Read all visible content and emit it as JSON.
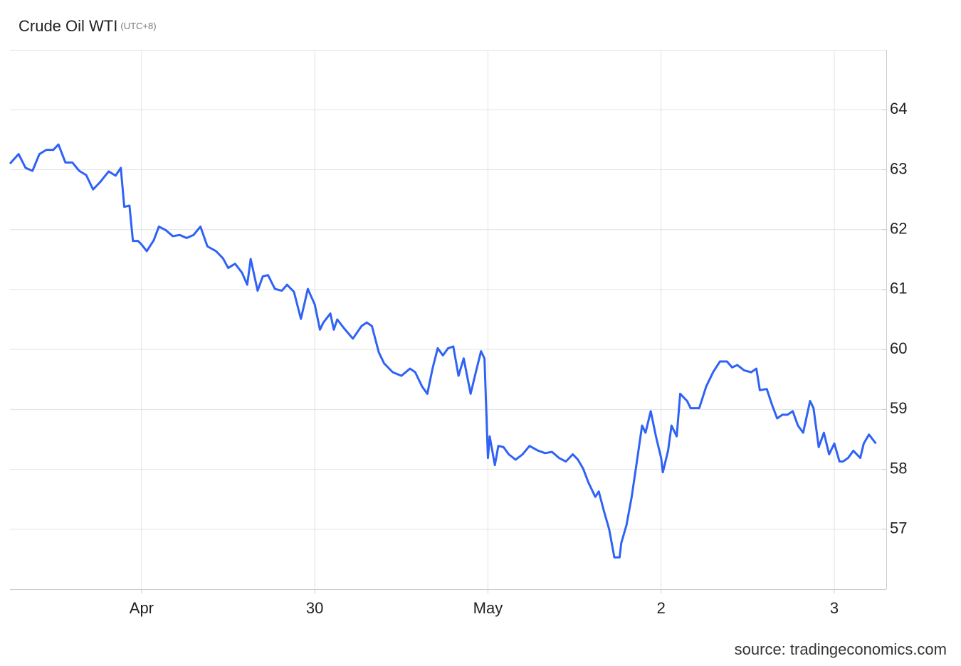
{
  "chart_data": {
    "type": "line",
    "title": "Crude Oil WTI",
    "subtitle": "(UTC+8)",
    "source": "source: tradingeconomics.com",
    "xlim": [
      0.24,
      5.3
    ],
    "ylim": [
      56,
      65
    ],
    "xticks": [
      {
        "value": 1,
        "label": "Apr"
      },
      {
        "value": 2,
        "label": "30"
      },
      {
        "value": 3,
        "label": "May"
      },
      {
        "value": 4,
        "label": "2"
      },
      {
        "value": 5,
        "label": "3"
      }
    ],
    "yticks": [
      57,
      58,
      59,
      60,
      61,
      62,
      63,
      64
    ],
    "grid": true,
    "series": [
      {
        "color": "#2f62f5",
        "x": [
          0.24,
          0.29,
          0.33,
          0.37,
          0.41,
          0.45,
          0.49,
          0.52,
          0.56,
          0.6,
          0.64,
          0.68,
          0.72,
          0.76,
          0.81,
          0.85,
          0.88,
          0.9,
          0.93,
          0.95,
          0.98,
          1.0,
          1.03,
          1.07,
          1.1,
          1.14,
          1.18,
          1.22,
          1.26,
          1.3,
          1.34,
          1.38,
          1.43,
          1.47,
          1.5,
          1.54,
          1.58,
          1.61,
          1.63,
          1.67,
          1.7,
          1.73,
          1.77,
          1.81,
          1.84,
          1.88,
          1.92,
          1.96,
          2.0,
          2.03,
          2.05,
          2.09,
          2.11,
          2.13,
          2.17,
          2.22,
          2.27,
          2.3,
          2.33,
          2.37,
          2.4,
          2.45,
          2.5,
          2.55,
          2.58,
          2.62,
          2.65,
          2.68,
          2.71,
          2.74,
          2.77,
          2.8,
          2.83,
          2.86,
          2.9,
          2.93,
          2.96,
          2.98,
          3.0,
          3.01,
          3.04,
          3.06,
          3.09,
          3.12,
          3.16,
          3.2,
          3.24,
          3.29,
          3.33,
          3.37,
          3.41,
          3.45,
          3.49,
          3.52,
          3.55,
          3.58,
          3.62,
          3.64,
          3.67,
          3.7,
          3.73,
          3.76,
          3.77,
          3.8,
          3.83,
          3.86,
          3.89,
          3.91,
          3.94,
          3.97,
          4.0,
          4.01,
          4.04,
          4.06,
          4.09,
          4.11,
          4.15,
          4.17,
          4.22,
          4.26,
          4.3,
          4.34,
          4.38,
          4.41,
          4.44,
          4.48,
          4.52,
          4.55,
          4.57,
          4.61,
          4.64,
          4.67,
          4.7,
          4.73,
          4.76,
          4.79,
          4.82,
          4.86,
          4.88,
          4.91,
          4.94,
          4.97,
          5.0,
          5.03,
          5.05,
          5.08,
          5.11,
          5.15,
          5.17,
          5.2,
          5.24
        ],
        "values": [
          63.1,
          63.26,
          63.03,
          62.98,
          63.26,
          63.33,
          63.33,
          63.42,
          63.12,
          63.12,
          62.98,
          62.91,
          62.67,
          62.79,
          62.97,
          62.9,
          63.03,
          62.38,
          62.4,
          61.81,
          61.81,
          61.75,
          61.64,
          61.82,
          62.05,
          61.99,
          61.89,
          61.91,
          61.86,
          61.91,
          62.05,
          61.72,
          61.64,
          61.52,
          61.36,
          61.43,
          61.28,
          61.08,
          61.51,
          60.98,
          61.22,
          61.24,
          61.01,
          60.98,
          61.08,
          60.96,
          60.51,
          61.01,
          60.75,
          60.33,
          60.45,
          60.6,
          60.33,
          60.5,
          60.35,
          60.18,
          60.39,
          60.45,
          60.39,
          59.95,
          59.77,
          59.62,
          59.56,
          59.68,
          59.62,
          59.38,
          59.26,
          59.68,
          60.02,
          59.9,
          60.02,
          60.05,
          59.56,
          59.85,
          59.26,
          59.62,
          59.97,
          59.85,
          58.19,
          58.55,
          58.07,
          58.39,
          58.37,
          58.25,
          58.16,
          58.25,
          58.39,
          58.31,
          58.27,
          58.29,
          58.19,
          58.13,
          58.25,
          58.16,
          58.01,
          57.78,
          57.54,
          57.63,
          57.3,
          57.0,
          56.53,
          56.53,
          56.77,
          57.07,
          57.54,
          58.13,
          58.73,
          58.61,
          58.97,
          58.55,
          58.19,
          57.95,
          58.31,
          58.73,
          58.55,
          59.26,
          59.14,
          59.02,
          59.02,
          59.38,
          59.62,
          59.8,
          59.8,
          59.7,
          59.74,
          59.65,
          59.62,
          59.68,
          59.32,
          59.34,
          59.08,
          58.85,
          58.91,
          58.91,
          58.97,
          58.73,
          58.61,
          59.14,
          59.02,
          58.37,
          58.61,
          58.25,
          58.43,
          58.13,
          58.13,
          58.19,
          58.31,
          58.19,
          58.43,
          58.58,
          58.43
        ]
      }
    ]
  }
}
